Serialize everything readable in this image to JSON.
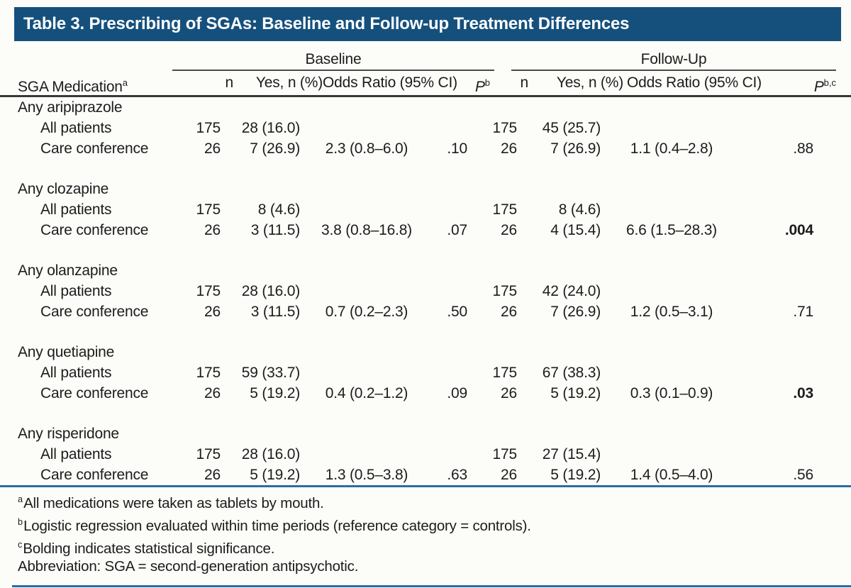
{
  "title": "Table 3. Prescribing of SGAs: Baseline and Follow-up Treatment Differences",
  "columns": {
    "sga": "SGA Medication",
    "sga_sup": "a",
    "baseline": "Baseline",
    "followup": "Follow-Up",
    "n": "n",
    "yes": "Yes, n (%)",
    "or": "Odds Ratio (95% CI)",
    "p": "P",
    "p_sup_baseline": "b",
    "p_sup_followup": "b,c"
  },
  "sections": [
    {
      "name": "Any aripiprazole",
      "rows": [
        {
          "label": "All patients",
          "baseline": {
            "n": "175",
            "yes": "28 (16.0)",
            "or": "",
            "p": ""
          },
          "followup": {
            "n": "175",
            "yes": "45 (25.7)",
            "or": "",
            "p": ""
          },
          "p_bold": false
        },
        {
          "label": "Care conference",
          "baseline": {
            "n": "26",
            "yes": "7 (26.9)",
            "or": "2.3 (0.8–6.0)",
            "p": ".10"
          },
          "followup": {
            "n": "26",
            "yes": "7 (26.9)",
            "or": "1.1 (0.4–2.8)",
            "p": ".88"
          },
          "p_bold": false
        }
      ]
    },
    {
      "name": "Any clozapine",
      "rows": [
        {
          "label": "All patients",
          "baseline": {
            "n": "175",
            "yes": "8 (4.6)",
            "or": "",
            "p": ""
          },
          "followup": {
            "n": "175",
            "yes": "8 (4.6)",
            "or": "",
            "p": ""
          },
          "p_bold": false
        },
        {
          "label": "Care conference",
          "baseline": {
            "n": "26",
            "yes": "3 (11.5)",
            "or": "3.8 (0.8–16.8)",
            "p": ".07"
          },
          "followup": {
            "n": "26",
            "yes": "4 (15.4)",
            "or": "6.6 (1.5–28.3)",
            "p": ".004"
          },
          "p_bold": true
        }
      ]
    },
    {
      "name": "Any olanzapine",
      "rows": [
        {
          "label": "All patients",
          "baseline": {
            "n": "175",
            "yes": "28 (16.0)",
            "or": "",
            "p": ""
          },
          "followup": {
            "n": "175",
            "yes": "42 (24.0)",
            "or": "",
            "p": ""
          },
          "p_bold": false
        },
        {
          "label": "Care conference",
          "baseline": {
            "n": "26",
            "yes": "3 (11.5)",
            "or": "0.7 (0.2–2.3)",
            "p": ".50"
          },
          "followup": {
            "n": "26",
            "yes": "7 (26.9)",
            "or": "1.2 (0.5–3.1)",
            "p": ".71"
          },
          "p_bold": false
        }
      ]
    },
    {
      "name": "Any quetiapine",
      "rows": [
        {
          "label": "All patients",
          "baseline": {
            "n": "175",
            "yes": "59 (33.7)",
            "or": "",
            "p": ""
          },
          "followup": {
            "n": "175",
            "yes": "67 (38.3)",
            "or": "",
            "p": ""
          },
          "p_bold": false
        },
        {
          "label": "Care conference",
          "baseline": {
            "n": "26",
            "yes": "5 (19.2)",
            "or": "0.4 (0.2–1.2)",
            "p": ".09"
          },
          "followup": {
            "n": "26",
            "yes": "5 (19.2)",
            "or": "0.3 (0.1–0.9)",
            "p": ".03"
          },
          "p_bold": true
        }
      ]
    },
    {
      "name": "Any risperidone",
      "rows": [
        {
          "label": "All patients",
          "baseline": {
            "n": "175",
            "yes": "28 (16.0)",
            "or": "",
            "p": ""
          },
          "followup": {
            "n": "175",
            "yes": "27 (15.4)",
            "or": "",
            "p": ""
          },
          "p_bold": false
        },
        {
          "label": "Care conference",
          "baseline": {
            "n": "26",
            "yes": "5 (19.2)",
            "or": "1.3 (0.5–3.8)",
            "p": ".63"
          },
          "followup": {
            "n": "26",
            "yes": "5 (19.2)",
            "or": "1.4 (0.5–4.0)",
            "p": ".56"
          },
          "p_bold": false
        }
      ]
    }
  ],
  "footnotes": [
    {
      "marker": "a",
      "text": "All medications were taken as tablets by mouth."
    },
    {
      "marker": "b",
      "text": "Logistic regression evaluated within time periods (reference category = controls)."
    },
    {
      "marker": "c",
      "text": "Bolding indicates statistical significance."
    },
    {
      "marker": "",
      "text": "Abbreviation: SGA = second-generation antipsychotic."
    }
  ],
  "colors": {
    "title_bar_bg": "#15507D",
    "title_text": "#FFFFFF",
    "blue_rule": "#2D6BA4",
    "header_rule": "#383838",
    "body_text": "#1C1C1C"
  }
}
